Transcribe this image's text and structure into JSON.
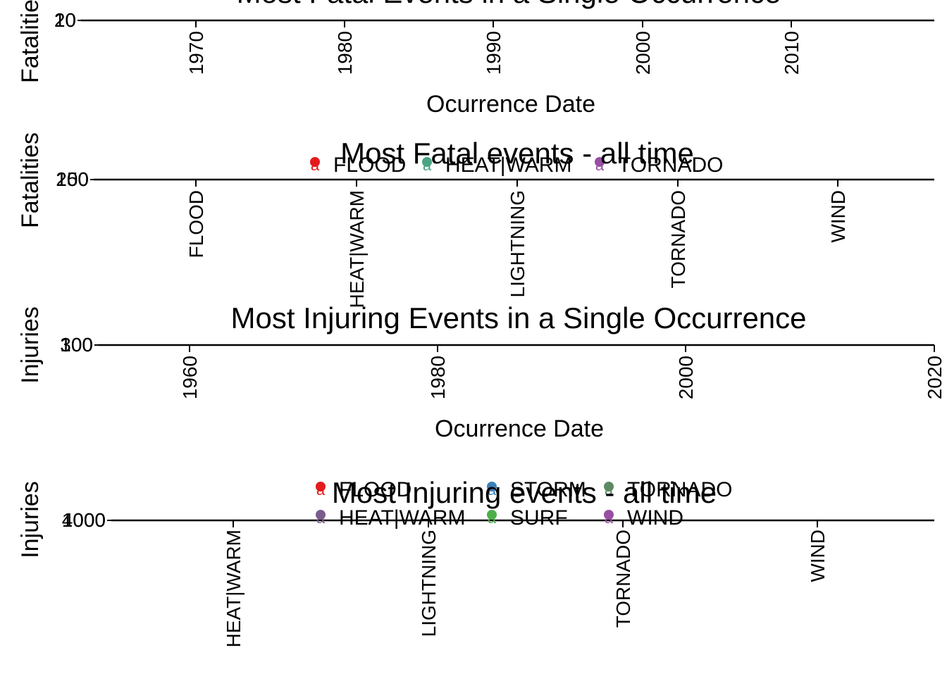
{
  "chart_data": [
    {
      "type": "scatter",
      "title": "Most Fatal Events in a Single Occurrence",
      "xlabel": "Ocurrence Date",
      "ylabel": "Fatalities",
      "x_ticks": [
        "1970",
        "1980",
        "1990",
        "2000",
        "2010"
      ],
      "y_ticks": [
        "20",
        "10"
      ],
      "series": []
    },
    {
      "type": "scatter",
      "title": "Most Fatal events - all time",
      "xlabel": "",
      "ylabel": "Fatalities",
      "categories": [
        "FLOOD",
        "HEAT|WARM",
        "LIGHTNING",
        "TORNADO",
        "WIND"
      ],
      "y_ticks": [
        "250",
        "100"
      ],
      "legend": [
        {
          "name": "FLOOD",
          "color": "#e41a1c"
        },
        {
          "name": "HEAT|WARM",
          "color": "#4aa483"
        },
        {
          "name": "TORNADO",
          "color": "#984ea3"
        }
      ]
    },
    {
      "type": "scatter",
      "title": "Most Injuring Events in a Single Occurrence",
      "xlabel": "Ocurrence Date",
      "ylabel": "Injuries",
      "x_ticks": [
        "1960",
        "1980",
        "2000",
        "2020"
      ],
      "y_ticks": [
        "300",
        "100"
      ],
      "series": []
    },
    {
      "type": "scatter",
      "title": "Most Injuring events - all time",
      "xlabel": "",
      "ylabel": "Injuries",
      "categories": [
        "HEAT|WARM",
        "LIGHTNING",
        "TORNADO",
        "WIND"
      ],
      "y_ticks": [
        "4000",
        "1000"
      ],
      "legend": [
        {
          "name": "FLOOD",
          "color": "#e41a1c"
        },
        {
          "name": "HEAT|WARM",
          "color": "#7a5d8c"
        },
        {
          "name": "STORM",
          "color": "#3b7fb8"
        },
        {
          "name": "SURF",
          "color": "#4daf4a"
        },
        {
          "name": "TORNADO",
          "color": "#5e8a62"
        },
        {
          "name": "WIND",
          "color": "#984ea3"
        }
      ]
    }
  ]
}
